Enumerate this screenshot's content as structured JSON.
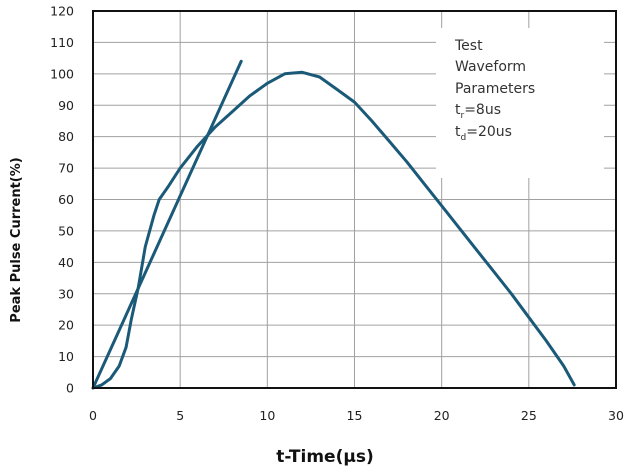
{
  "chart_data": {
    "type": "line",
    "xlabel": "t-Time(μs)",
    "ylabel": "Peak Pulse Current(%)",
    "xlim": [
      0,
      30
    ],
    "ylim": [
      0,
      120
    ],
    "x_ticks": [
      0,
      5,
      10,
      15,
      20,
      25,
      30
    ],
    "y_ticks": [
      0,
      10,
      20,
      30,
      40,
      50,
      60,
      70,
      80,
      90,
      100,
      110,
      120
    ],
    "grid": true,
    "series": [
      {
        "values": [
          [
            0,
            0
          ],
          [
            0.5,
            1
          ],
          [
            1,
            3
          ],
          [
            1.5,
            7
          ],
          [
            1.9,
            13
          ],
          [
            2.2,
            22
          ],
          [
            2.6,
            32
          ],
          [
            3,
            45
          ],
          [
            3.5,
            55
          ],
          [
            3.8,
            60
          ],
          [
            4.3,
            64
          ],
          [
            5,
            70
          ],
          [
            6,
            77
          ],
          [
            7,
            83
          ],
          [
            8,
            88
          ],
          [
            9,
            93
          ],
          [
            10,
            97
          ],
          [
            11,
            100
          ],
          [
            12,
            100.5
          ],
          [
            13,
            99
          ],
          [
            14,
            95
          ],
          [
            15,
            91
          ],
          [
            16,
            85
          ],
          [
            17,
            78.5
          ],
          [
            18,
            72
          ],
          [
            19,
            65
          ],
          [
            20,
            58
          ],
          [
            21,
            51
          ],
          [
            22,
            44
          ],
          [
            23,
            37
          ],
          [
            24,
            30
          ],
          [
            25,
            22.5
          ],
          [
            26,
            15
          ],
          [
            27,
            7
          ],
          [
            27.6,
            1
          ]
        ]
      },
      {
        "values": [
          [
            0,
            0
          ],
          [
            8.5,
            104
          ]
        ]
      }
    ],
    "legend": {
      "title_lines": [
        "Test",
        "Waveform",
        "Parameters"
      ],
      "tr": {
        "symbol": "t",
        "sub": "r",
        "value": "=8us"
      },
      "td": {
        "symbol": "t",
        "sub": "d",
        "value": "=20us"
      }
    },
    "colors": {
      "line": "#1a5a78",
      "grid": "#a0a0a0",
      "frame": "#111111"
    }
  }
}
